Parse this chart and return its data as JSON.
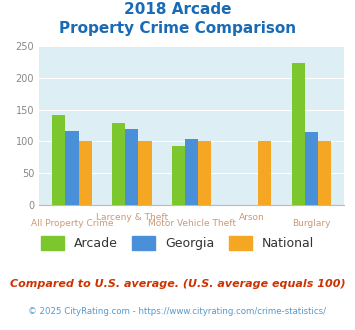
{
  "title_line1": "2018 Arcade",
  "title_line2": "Property Crime Comparison",
  "categories": [
    "All Property Crime",
    "Larceny & Theft",
    "Motor Vehicle Theft",
    "Arson",
    "Burglary"
  ],
  "arcade_values": [
    141,
    129,
    92,
    0,
    223
  ],
  "georgia_values": [
    116,
    120,
    103,
    0,
    115
  ],
  "national_values": [
    100,
    100,
    100,
    100,
    100
  ],
  "arcade_color": "#7dc72e",
  "georgia_color": "#4a90d9",
  "national_color": "#f5a623",
  "plot_bg_color": "#ddeef5",
  "ylim": [
    0,
    250
  ],
  "yticks": [
    0,
    50,
    100,
    150,
    200,
    250
  ],
  "legend_labels": [
    "Arcade",
    "Georgia",
    "National"
  ],
  "footnote1": "Compared to U.S. average. (U.S. average equals 100)",
  "footnote2": "© 2025 CityRating.com - https://www.cityrating.com/crime-statistics/",
  "title_color": "#1a6bb5",
  "footnote1_color": "#cc3300",
  "footnote2_color": "#5599cc",
  "xtick_color": "#cc9977",
  "ytick_color": "#888888",
  "bar_width": 0.22,
  "group_positions": [
    0,
    1,
    2,
    3,
    4
  ]
}
